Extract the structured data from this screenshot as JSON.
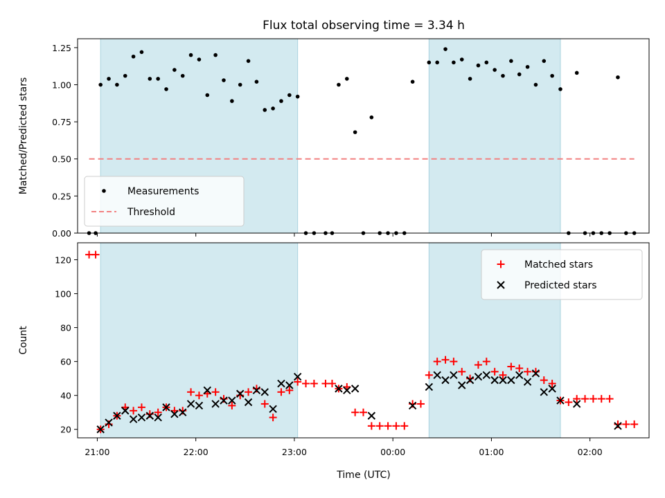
{
  "chart_data": {
    "title": "Flux total observing time = 3.34 h",
    "xlabel": "Time (UTC)",
    "x_ticks": [
      "21:00",
      "22:00",
      "23:00",
      "00:00",
      "01:00",
      "02:00"
    ],
    "shaded_intervals": [
      [
        "21:02",
        "23:02"
      ],
      [
        "00:22",
        "01:42"
      ]
    ],
    "shade_color": "#d3eaf0",
    "panels": [
      {
        "id": "ratio",
        "type": "scatter",
        "ylabel": "Matched/Predicted stars",
        "ylim": [
          0,
          1.31
        ],
        "yticks": [
          0.0,
          0.25,
          0.5,
          0.75,
          1.0,
          1.25
        ],
        "ytick_labels": [
          "0.00",
          "0.25",
          "0.50",
          "0.75",
          "1.00",
          "1.25"
        ],
        "legend_position": "lower-left",
        "series": [
          {
            "name": "Measurements",
            "marker": "dot",
            "color": "#000000",
            "points": [
              [
                "20:55",
                0.0
              ],
              [
                "20:59",
                0.0
              ],
              [
                "21:02",
                1.0
              ],
              [
                "21:07",
                1.04
              ],
              [
                "21:12",
                1.0
              ],
              [
                "21:17",
                1.06
              ],
              [
                "21:22",
                1.19
              ],
              [
                "21:27",
                1.22
              ],
              [
                "21:32",
                1.04
              ],
              [
                "21:37",
                1.04
              ],
              [
                "21:42",
                0.97
              ],
              [
                "21:47",
                1.1
              ],
              [
                "21:52",
                1.06
              ],
              [
                "21:57",
                1.2
              ],
              [
                "22:02",
                1.17
              ],
              [
                "22:07",
                0.93
              ],
              [
                "22:12",
                1.2
              ],
              [
                "22:17",
                1.03
              ],
              [
                "22:22",
                0.89
              ],
              [
                "22:27",
                1.0
              ],
              [
                "22:32",
                1.16
              ],
              [
                "22:37",
                1.02
              ],
              [
                "22:42",
                0.83
              ],
              [
                "22:47",
                0.84
              ],
              [
                "22:52",
                0.89
              ],
              [
                "22:57",
                0.93
              ],
              [
                "23:02",
                0.92
              ],
              [
                "23:07",
                0.0
              ],
              [
                "23:12",
                0.0
              ],
              [
                "23:19",
                0.0
              ],
              [
                "23:23",
                0.0
              ],
              [
                "23:27",
                1.0
              ],
              [
                "23:32",
                1.04
              ],
              [
                "23:37",
                0.68
              ],
              [
                "23:42",
                0.0
              ],
              [
                "23:47",
                0.78
              ],
              [
                "23:52",
                0.0
              ],
              [
                "23:57",
                0.0
              ],
              [
                "00:02",
                0.0
              ],
              [
                "00:07",
                0.0
              ],
              [
                "00:12",
                1.02
              ],
              [
                "00:22",
                1.15
              ],
              [
                "00:27",
                1.15
              ],
              [
                "00:32",
                1.24
              ],
              [
                "00:37",
                1.15
              ],
              [
                "00:42",
                1.17
              ],
              [
                "00:47",
                1.04
              ],
              [
                "00:52",
                1.13
              ],
              [
                "00:57",
                1.15
              ],
              [
                "01:02",
                1.1
              ],
              [
                "01:07",
                1.06
              ],
              [
                "01:12",
                1.16
              ],
              [
                "01:17",
                1.07
              ],
              [
                "01:22",
                1.12
              ],
              [
                "01:27",
                1.0
              ],
              [
                "01:32",
                1.16
              ],
              [
                "01:37",
                1.06
              ],
              [
                "01:42",
                0.97
              ],
              [
                "01:47",
                0.0
              ],
              [
                "01:52",
                1.08
              ],
              [
                "01:57",
                0.0
              ],
              [
                "02:02",
                0.0
              ],
              [
                "02:07",
                0.0
              ],
              [
                "02:12",
                0.0
              ],
              [
                "02:17",
                1.05
              ],
              [
                "02:22",
                0.0
              ],
              [
                "02:27",
                0.0
              ]
            ]
          },
          {
            "name": "Threshold",
            "marker": "dashed-line",
            "color": "#f28080",
            "points": [
              [
                "20:55",
                0.5
              ],
              [
                "02:27",
                0.5
              ]
            ]
          }
        ]
      },
      {
        "id": "count",
        "type": "scatter",
        "ylabel": "Count",
        "ylim": [
          15,
          130
        ],
        "yticks": [
          20,
          40,
          60,
          80,
          100,
          120
        ],
        "ytick_labels": [
          "20",
          "40",
          "60",
          "80",
          "100",
          "120"
        ],
        "legend_position": "upper-right",
        "series": [
          {
            "name": "Matched stars",
            "marker": "plus",
            "color": "#ff0000",
            "points": [
              [
                "20:55",
                123
              ],
              [
                "20:59",
                123
              ],
              [
                "21:02",
                20
              ],
              [
                "21:07",
                23
              ],
              [
                "21:12",
                28
              ],
              [
                "21:17",
                33
              ],
              [
                "21:22",
                31
              ],
              [
                "21:27",
                33
              ],
              [
                "21:32",
                29
              ],
              [
                "21:37",
                30
              ],
              [
                "21:42",
                33
              ],
              [
                "21:47",
                31
              ],
              [
                "21:52",
                31
              ],
              [
                "21:57",
                42
              ],
              [
                "22:02",
                40
              ],
              [
                "22:07",
                41
              ],
              [
                "22:12",
                42
              ],
              [
                "22:17",
                38
              ],
              [
                "22:22",
                34
              ],
              [
                "22:27",
                40
              ],
              [
                "22:32",
                42
              ],
              [
                "22:37",
                44
              ],
              [
                "22:42",
                35
              ],
              [
                "22:47",
                27
              ],
              [
                "22:52",
                42
              ],
              [
                "22:57",
                43
              ],
              [
                "23:02",
                48
              ],
              [
                "23:07",
                47
              ],
              [
                "23:12",
                47
              ],
              [
                "23:19",
                47
              ],
              [
                "23:23",
                47
              ],
              [
                "23:27",
                44
              ],
              [
                "23:32",
                45
              ],
              [
                "23:37",
                30
              ],
              [
                "23:42",
                30
              ],
              [
                "23:47",
                22
              ],
              [
                "23:52",
                22
              ],
              [
                "23:57",
                22
              ],
              [
                "00:02",
                22
              ],
              [
                "00:07",
                22
              ],
              [
                "00:12",
                35
              ],
              [
                "00:17",
                35
              ],
              [
                "00:22",
                52
              ],
              [
                "00:27",
                60
              ],
              [
                "00:32",
                61
              ],
              [
                "00:37",
                60
              ],
              [
                "00:42",
                54
              ],
              [
                "00:47",
                50
              ],
              [
                "00:52",
                58
              ],
              [
                "00:57",
                60
              ],
              [
                "01:02",
                54
              ],
              [
                "01:07",
                52
              ],
              [
                "01:12",
                57
              ],
              [
                "01:17",
                56
              ],
              [
                "01:22",
                54
              ],
              [
                "01:27",
                54
              ],
              [
                "01:32",
                49
              ],
              [
                "01:37",
                47
              ],
              [
                "01:42",
                37
              ],
              [
                "01:47",
                36
              ],
              [
                "01:52",
                38
              ],
              [
                "01:57",
                38
              ],
              [
                "02:02",
                38
              ],
              [
                "02:07",
                38
              ],
              [
                "02:12",
                38
              ],
              [
                "02:17",
                23
              ],
              [
                "02:22",
                23
              ],
              [
                "02:27",
                23
              ]
            ]
          },
          {
            "name": "Predicted stars",
            "marker": "x",
            "color": "#000000",
            "points": [
              [
                "21:02",
                20
              ],
              [
                "21:07",
                24
              ],
              [
                "21:12",
                28
              ],
              [
                "21:17",
                31
              ],
              [
                "21:22",
                26
              ],
              [
                "21:27",
                27
              ],
              [
                "21:32",
                28
              ],
              [
                "21:37",
                27
              ],
              [
                "21:42",
                33
              ],
              [
                "21:47",
                29
              ],
              [
                "21:52",
                30
              ],
              [
                "21:57",
                35
              ],
              [
                "22:02",
                34
              ],
              [
                "22:07",
                43
              ],
              [
                "22:12",
                35
              ],
              [
                "22:17",
                37
              ],
              [
                "22:22",
                37
              ],
              [
                "22:27",
                41
              ],
              [
                "22:32",
                36
              ],
              [
                "22:37",
                43
              ],
              [
                "22:42",
                42
              ],
              [
                "22:47",
                32
              ],
              [
                "22:52",
                47
              ],
              [
                "22:57",
                46
              ],
              [
                "23:02",
                51
              ],
              [
                "23:27",
                44
              ],
              [
                "23:32",
                43
              ],
              [
                "23:37",
                44
              ],
              [
                "23:47",
                28
              ],
              [
                "00:12",
                34
              ],
              [
                "00:22",
                45
              ],
              [
                "00:27",
                52
              ],
              [
                "00:32",
                49
              ],
              [
                "00:37",
                52
              ],
              [
                "00:42",
                46
              ],
              [
                "00:47",
                49
              ],
              [
                "00:52",
                51
              ],
              [
                "00:57",
                52
              ],
              [
                "01:02",
                49
              ],
              [
                "01:07",
                49
              ],
              [
                "01:12",
                49
              ],
              [
                "01:17",
                52
              ],
              [
                "01:22",
                48
              ],
              [
                "01:27",
                53
              ],
              [
                "01:32",
                42
              ],
              [
                "01:37",
                44
              ],
              [
                "01:42",
                37
              ],
              [
                "01:52",
                35
              ],
              [
                "02:17",
                22
              ]
            ]
          }
        ]
      }
    ]
  }
}
